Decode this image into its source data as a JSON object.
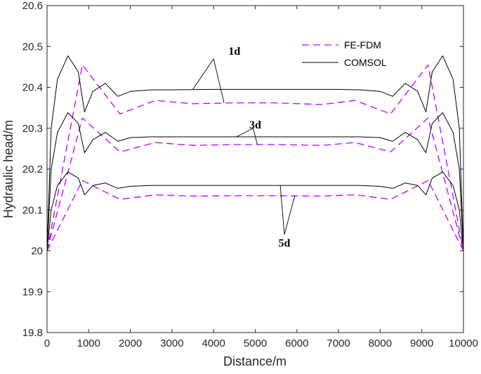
{
  "chart_data": {
    "type": "line",
    "title": "",
    "xlabel": "Distance/m",
    "ylabel": "Hydraulic head/m",
    "xlim": [
      0,
      10000
    ],
    "ylim": [
      19.8,
      20.6
    ],
    "xticks": [
      0,
      1000,
      2000,
      3000,
      4000,
      5000,
      6000,
      7000,
      8000,
      9000,
      10000
    ],
    "yticks": [
      19.8,
      19.9,
      20,
      20.1,
      20.2,
      20.3,
      20.4,
      20.5,
      20.6
    ],
    "xtick_labels": [
      "0",
      "1000",
      "2000",
      "3000",
      "4000",
      "5000",
      "6000",
      "7000",
      "8000",
      "9000",
      "10000"
    ],
    "ytick_labels": [
      "19.8",
      "19.9",
      "20",
      "20.1",
      "20.2",
      "20.3",
      "20.4",
      "20.5",
      "20.6"
    ],
    "grid": false,
    "legend_position": "top-right",
    "legend": [
      "FE-FDM",
      "COMSOL"
    ],
    "series": [
      {
        "name": "FE-FDM",
        "time": "1d",
        "color": "#bf00ff",
        "dash": true,
        "x": [
          0,
          850,
          1750,
          2600,
          3500,
          4500,
          5500,
          6600,
          7400,
          8250,
          9150,
          10000
        ],
        "y": [
          20.0,
          20.455,
          20.335,
          20.368,
          20.36,
          20.362,
          20.362,
          20.358,
          20.368,
          20.335,
          20.455,
          20.0
        ]
      },
      {
        "name": "COMSOL",
        "time": "1d",
        "color": "#000000",
        "dash": false,
        "x": [
          0,
          100,
          250,
          500,
          750,
          900,
          1100,
          1400,
          1700,
          2000,
          2500,
          3000,
          4000,
          5000,
          6000,
          7000,
          7500,
          8000,
          8300,
          8600,
          8900,
          9100,
          9250,
          9500,
          9750,
          9900,
          10000
        ],
        "y": [
          20.0,
          20.3,
          20.42,
          20.477,
          20.438,
          20.34,
          20.39,
          20.41,
          20.378,
          20.39,
          20.394,
          20.394,
          20.395,
          20.395,
          20.395,
          20.395,
          20.394,
          20.39,
          20.378,
          20.41,
          20.39,
          20.34,
          20.438,
          20.477,
          20.42,
          20.3,
          20.0
        ]
      },
      {
        "name": "FE-FDM",
        "time": "3d",
        "color": "#bf00ff",
        "dash": true,
        "x": [
          0,
          850,
          1750,
          2600,
          3500,
          4500,
          5500,
          6600,
          7400,
          8250,
          9150,
          10000
        ],
        "y": [
          20.0,
          20.325,
          20.242,
          20.265,
          20.258,
          20.26,
          20.26,
          20.258,
          20.265,
          20.242,
          20.325,
          20.0
        ]
      },
      {
        "name": "COMSOL",
        "time": "3d",
        "color": "#000000",
        "dash": false,
        "x": [
          0,
          100,
          250,
          500,
          750,
          900,
          1100,
          1400,
          1700,
          2000,
          2500,
          3000,
          4000,
          5000,
          6000,
          7000,
          7500,
          8000,
          8300,
          8600,
          8900,
          9100,
          9250,
          9500,
          9750,
          9900,
          10000
        ],
        "y": [
          20.0,
          20.2,
          20.29,
          20.338,
          20.312,
          20.24,
          20.272,
          20.29,
          20.268,
          20.277,
          20.279,
          20.279,
          20.279,
          20.279,
          20.279,
          20.279,
          20.279,
          20.277,
          20.268,
          20.29,
          20.272,
          20.24,
          20.312,
          20.338,
          20.29,
          20.2,
          20.0
        ]
      },
      {
        "name": "FE-FDM",
        "time": "5d",
        "color": "#bf00ff",
        "dash": true,
        "x": [
          0,
          850,
          1750,
          2600,
          3500,
          4500,
          5500,
          6600,
          7400,
          8250,
          9150,
          10000
        ],
        "y": [
          20.0,
          20.172,
          20.126,
          20.137,
          20.134,
          20.135,
          20.135,
          20.134,
          20.137,
          20.126,
          20.172,
          20.0
        ]
      },
      {
        "name": "COMSOL",
        "time": "5d",
        "color": "#000000",
        "dash": false,
        "x": [
          0,
          100,
          250,
          500,
          750,
          900,
          1100,
          1400,
          1700,
          2000,
          2500,
          3000,
          4000,
          5000,
          6000,
          7000,
          7500,
          8000,
          8300,
          8600,
          8900,
          9100,
          9250,
          9500,
          9750,
          9900,
          10000
        ],
        "y": [
          20.0,
          20.1,
          20.16,
          20.193,
          20.178,
          20.137,
          20.16,
          20.166,
          20.153,
          20.158,
          20.16,
          20.16,
          20.16,
          20.16,
          20.16,
          20.16,
          20.16,
          20.158,
          20.153,
          20.166,
          20.16,
          20.137,
          20.178,
          20.193,
          20.16,
          20.1,
          20.0
        ]
      }
    ],
    "annotations": [
      {
        "text": "1d",
        "label_x": 4500,
        "label_y": 20.48,
        "pointers": [
          {
            "from_x": 4000,
            "from_y": 20.47,
            "to_x": 3500,
            "to_y": 20.395
          },
          {
            "from_x": 4000,
            "from_y": 20.47,
            "to_x": 4250,
            "to_y": 20.362
          }
        ]
      },
      {
        "text": "3d",
        "label_x": 5000,
        "label_y": 20.3,
        "pointers": [
          {
            "from_x": 4950,
            "from_y": 20.3,
            "to_x": 4550,
            "to_y": 20.279
          },
          {
            "from_x": 4950,
            "from_y": 20.3,
            "to_x": 5050,
            "to_y": 20.26
          }
        ]
      },
      {
        "text": "5d",
        "label_x": 5700,
        "label_y": 20.01,
        "pointers": [
          {
            "from_x": 5700,
            "from_y": 20.04,
            "to_x": 5600,
            "to_y": 20.16
          },
          {
            "from_x": 5700,
            "from_y": 20.04,
            "to_x": 5950,
            "to_y": 20.135
          }
        ]
      }
    ]
  }
}
